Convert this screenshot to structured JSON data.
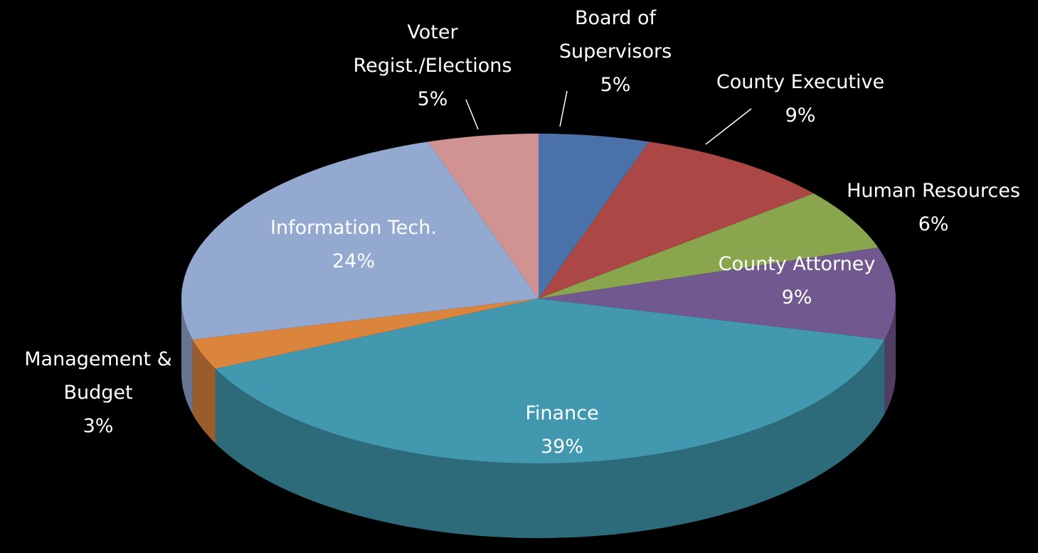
{
  "chart_data": {
    "type": "pie3d",
    "categories": [
      "Board of Supervisors",
      "County Executive",
      "Human Resources",
      "County Attorney",
      "Finance",
      "Management & Budget",
      "Information Tech.",
      "Voter Regist./Elections"
    ],
    "values": [
      5,
      9,
      6,
      9,
      39,
      3,
      24,
      5
    ],
    "value_labels": [
      "5%",
      "9%",
      "6%",
      "9%",
      "39%",
      "3%",
      "24%",
      "5%"
    ],
    "colors": [
      "#4a72a8",
      "#ab4744",
      "#89a54e",
      "#71588f",
      "#4198af",
      "#db843d",
      "#93a9cf",
      "#d19392"
    ]
  }
}
